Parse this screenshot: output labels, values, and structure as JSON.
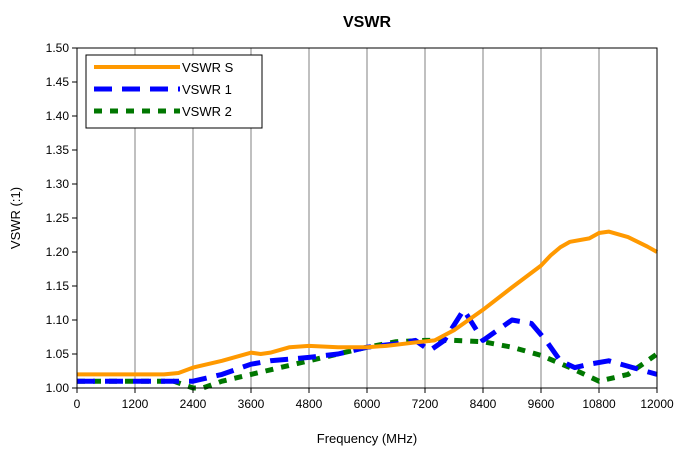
{
  "chart_data": {
    "type": "line",
    "title": "VSWR",
    "xlabel": "Frequency (MHz)",
    "ylabel": "VSWR (:1)",
    "xlim": [
      0,
      12000
    ],
    "ylim": [
      1.0,
      1.5
    ],
    "x_ticks": [
      0,
      1200,
      2400,
      3600,
      4800,
      6000,
      7200,
      8400,
      9600,
      10800,
      12000
    ],
    "y_ticks": [
      1.0,
      1.05,
      1.1,
      1.15,
      1.2,
      1.25,
      1.3,
      1.35,
      1.4,
      1.45,
      1.5
    ],
    "x_tick_labels": [
      "0",
      "1200",
      "2400",
      "3600",
      "4800",
      "6000",
      "7200",
      "8400",
      "9600",
      "10800",
      "12000"
    ],
    "y_tick_labels": [
      "1.00",
      "1.05",
      "1.10",
      "1.15",
      "1.20",
      "1.25",
      "1.30",
      "1.35",
      "1.40",
      "1.45",
      "1.50"
    ],
    "grid": "vertical",
    "legend_position": "top-left",
    "series": [
      {
        "name": "VSWR S",
        "color": "#FF9900",
        "style": "solid",
        "points": [
          [
            0,
            1.02
          ],
          [
            600,
            1.02
          ],
          [
            1200,
            1.02
          ],
          [
            1800,
            1.02
          ],
          [
            2100,
            1.022
          ],
          [
            2400,
            1.03
          ],
          [
            3000,
            1.04
          ],
          [
            3600,
            1.052
          ],
          [
            3800,
            1.05
          ],
          [
            4000,
            1.052
          ],
          [
            4400,
            1.06
          ],
          [
            4800,
            1.062
          ],
          [
            5400,
            1.06
          ],
          [
            6000,
            1.06
          ],
          [
            6400,
            1.062
          ],
          [
            7000,
            1.067
          ],
          [
            7400,
            1.07
          ],
          [
            7800,
            1.085
          ],
          [
            8400,
            1.115
          ],
          [
            9000,
            1.148
          ],
          [
            9600,
            1.18
          ],
          [
            9800,
            1.195
          ],
          [
            10000,
            1.207
          ],
          [
            10200,
            1.215
          ],
          [
            10600,
            1.22
          ],
          [
            10800,
            1.228
          ],
          [
            11000,
            1.23
          ],
          [
            11400,
            1.222
          ],
          [
            11800,
            1.208
          ],
          [
            12000,
            1.2
          ]
        ]
      },
      {
        "name": "VSWR 1",
        "color": "#0000FF",
        "style": "dash",
        "points": [
          [
            0,
            1.01
          ],
          [
            1200,
            1.01
          ],
          [
            2400,
            1.01
          ],
          [
            3000,
            1.02
          ],
          [
            3600,
            1.035
          ],
          [
            4000,
            1.04
          ],
          [
            4800,
            1.045
          ],
          [
            5400,
            1.05
          ],
          [
            6000,
            1.06
          ],
          [
            6600,
            1.065
          ],
          [
            7000,
            1.07
          ],
          [
            7300,
            1.055
          ],
          [
            7600,
            1.07
          ],
          [
            8000,
            1.115
          ],
          [
            8400,
            1.07
          ],
          [
            9000,
            1.1
          ],
          [
            9400,
            1.095
          ],
          [
            9700,
            1.07
          ],
          [
            10000,
            1.04
          ],
          [
            10300,
            1.03
          ],
          [
            10600,
            1.035
          ],
          [
            11000,
            1.04
          ],
          [
            11500,
            1.03
          ],
          [
            12000,
            1.02
          ]
        ]
      },
      {
        "name": "VSWR 2",
        "color": "#007700",
        "style": "short-dash",
        "points": [
          [
            0,
            1.01
          ],
          [
            1200,
            1.01
          ],
          [
            2000,
            1.01
          ],
          [
            2400,
            1.0
          ],
          [
            2600,
            1.0
          ],
          [
            3000,
            1.01
          ],
          [
            3600,
            1.02
          ],
          [
            4200,
            1.03
          ],
          [
            4800,
            1.04
          ],
          [
            5400,
            1.05
          ],
          [
            6000,
            1.06
          ],
          [
            6600,
            1.068
          ],
          [
            7200,
            1.07
          ],
          [
            7800,
            1.07
          ],
          [
            8400,
            1.068
          ],
          [
            9000,
            1.06
          ],
          [
            9600,
            1.048
          ],
          [
            10200,
            1.03
          ],
          [
            10800,
            1.01
          ],
          [
            11400,
            1.02
          ],
          [
            12000,
            1.05
          ]
        ]
      }
    ]
  }
}
